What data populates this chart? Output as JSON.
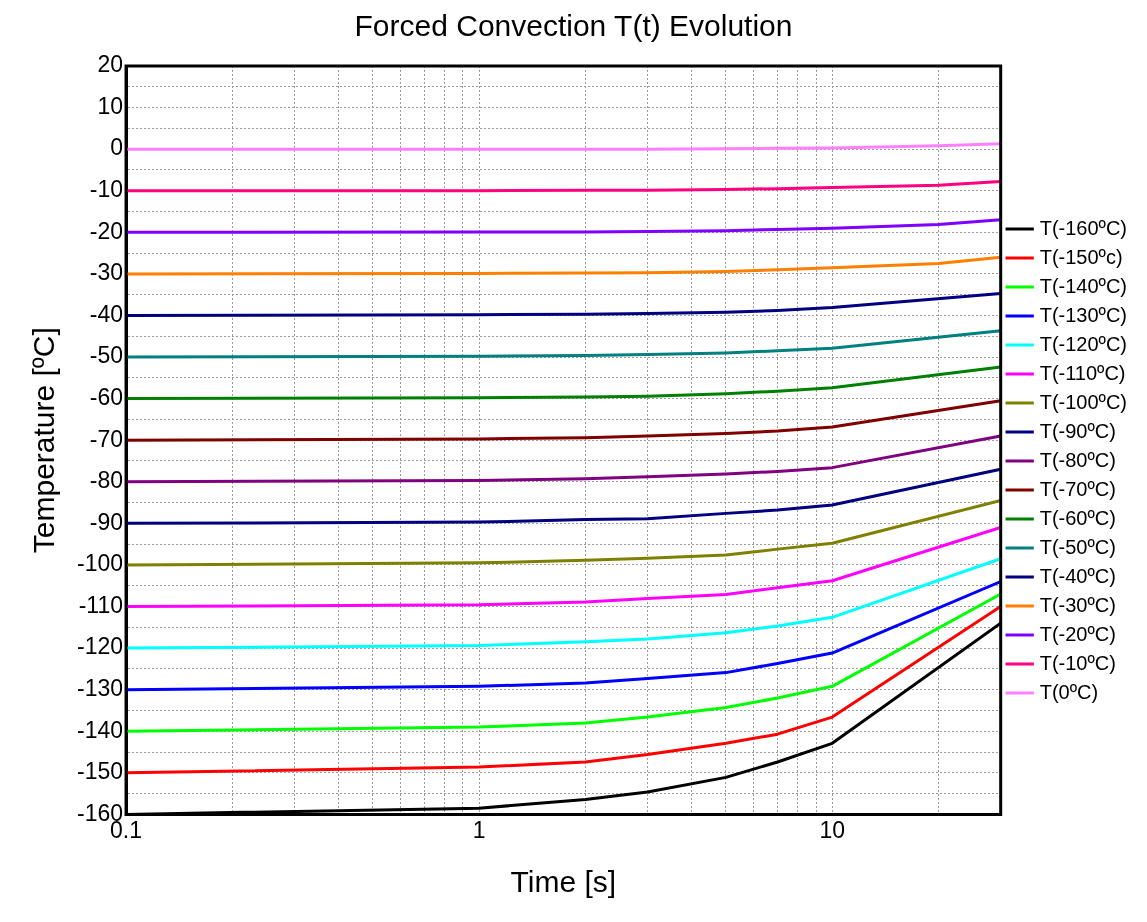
{
  "chart_data": {
    "type": "line",
    "title": "Forced Convection T(t) Evolution",
    "xlabel": "Time [s]",
    "ylabel": "Temperature [ºC]",
    "log": "x",
    "grid": true,
    "legend": "right",
    "line_style": "solid",
    "xlim": [
      0.1,
      30
    ],
    "ylim": [
      -160,
      20
    ],
    "xticks": [
      0.1,
      {
        "value": 0.2,
        "label": null
      },
      {
        "value": 0.3,
        "label": null
      },
      {
        "value": 0.4,
        "label": null
      },
      {
        "value": 0.5,
        "label": null
      },
      {
        "value": 0.6,
        "label": null
      },
      {
        "value": 0.7,
        "label": null
      },
      {
        "value": 0.8,
        "label": null
      },
      {
        "value": 0.9,
        "label": null
      },
      1,
      {
        "value": 2,
        "label": null
      },
      {
        "value": 3,
        "label": null
      },
      {
        "value": 4,
        "label": null
      },
      {
        "value": 5,
        "label": null
      },
      {
        "value": 6,
        "label": null
      },
      {
        "value": 7,
        "label": null
      },
      {
        "value": 8,
        "label": null
      },
      {
        "value": 9,
        "label": null
      },
      10,
      {
        "value": 20,
        "label": null
      }
    ],
    "yticks": [
      -160,
      {
        "value": -155,
        "label": null
      },
      -150,
      {
        "value": -145,
        "label": null
      },
      -140,
      {
        "value": -135,
        "label": null
      },
      -130,
      {
        "value": -125,
        "label": null
      },
      -120,
      {
        "value": -115,
        "label": null
      },
      -110,
      {
        "value": -105,
        "label": null
      },
      -100,
      {
        "value": -95,
        "label": null
      },
      -90,
      {
        "value": -85,
        "label": null
      },
      -80,
      {
        "value": -75,
        "label": null
      },
      -70,
      {
        "value": -65,
        "label": null
      },
      -60,
      {
        "value": -55,
        "label": null
      },
      -50,
      {
        "value": -45,
        "label": null
      },
      -40,
      {
        "value": -35,
        "label": null
      },
      -30,
      {
        "value": -25,
        "label": null
      },
      -20,
      {
        "value": -15,
        "label": null
      },
      -10,
      {
        "value": -5,
        "label": null
      },
      0,
      {
        "value": 5,
        "label": null
      },
      10,
      {
        "value": 15,
        "label": null
      },
      20
    ],
    "x": [
      0.1,
      1,
      2,
      3,
      5,
      7,
      10,
      20,
      30
    ],
    "series": [
      {
        "name": "T(-160ºC)",
        "color": "#000000",
        "values": [
          -160,
          -158.5,
          -156.4,
          -154.6,
          -151.1,
          -147.4,
          -142.9,
          null,
          -114
        ]
      },
      {
        "name": "T(-150ºc)",
        "color": "#ff0000",
        "values": [
          -150,
          -148.6,
          -147.4,
          -145.6,
          -142.9,
          -140.7,
          -136.6,
          null,
          -110
        ]
      },
      {
        "name": "T(-140ºC)",
        "color": "#00ff00",
        "values": [
          -140,
          -139,
          -138,
          -136.6,
          -134.3,
          -132,
          -129.2,
          null,
          -107
        ]
      },
      {
        "name": "T(-130ºC)",
        "color": "#0000ff",
        "values": [
          -130,
          -129.2,
          -128.4,
          -127.3,
          -125.9,
          -123.7,
          -121.2,
          null,
          -104
        ]
      },
      {
        "name": "T(-120ºC)",
        "color": "#00ffff",
        "values": [
          -120,
          -119.4,
          -118.5,
          -117.8,
          -116.3,
          -114.7,
          -112.6,
          null,
          -98.5
        ]
      },
      {
        "name": "T(-110ºC)",
        "color": "#ff00ff",
        "values": [
          -110,
          -109.6,
          -108.9,
          -108.1,
          -107.1,
          -105.5,
          -103.8,
          null,
          -91
        ]
      },
      {
        "name": "T(-100ºC)",
        "color": "#808000",
        "values": [
          -100,
          -99.5,
          -98.9,
          -98.4,
          -97.6,
          -96.2,
          -94.8,
          null,
          -84.5
        ]
      },
      {
        "name": "T(-90ºC)",
        "color": "#000080",
        "values": [
          -90,
          -89.7,
          -89.1,
          -88.9,
          -87.6,
          -86.8,
          -85.6,
          null,
          -77
        ]
      },
      {
        "name": "T(-80ºC)",
        "color": "#800080",
        "values": [
          -80,
          -79.7,
          -79.3,
          -78.8,
          -78.1,
          -77.5,
          -76.6,
          null,
          -69
        ]
      },
      {
        "name": "T(-70ºC)",
        "color": "#800000",
        "values": [
          -70,
          -69.7,
          -69.4,
          -69,
          -68.4,
          -67.8,
          -66.8,
          null,
          -60.5
        ]
      },
      {
        "name": "T(-60ºC)",
        "color": "#008000",
        "values": [
          -60,
          -59.8,
          -59.6,
          -59.4,
          -58.8,
          -58.2,
          -57.4,
          null,
          -52.4
        ]
      },
      {
        "name": "T(-50ºC)",
        "color": "#008080",
        "values": [
          -50,
          -49.8,
          -49.6,
          -49.4,
          -49,
          -48.5,
          -47.9,
          null,
          -43.7
        ]
      },
      {
        "name": "T(-40ºC)",
        "color": "#000080",
        "values": [
          -40,
          -39.8,
          -39.7,
          -39.5,
          -39.2,
          -38.8,
          -38.1,
          null,
          -34.7
        ]
      },
      {
        "name": "T(-30ºC)",
        "color": "#ff8000",
        "values": [
          -30,
          -29.9,
          -29.8,
          -29.7,
          -29.4,
          -29,
          -28.5,
          -27.5,
          -26
        ]
      },
      {
        "name": "T(-20ºC)",
        "color": "#8000ff",
        "values": [
          -20,
          -19.9,
          -19.9,
          -19.8,
          -19.6,
          -19.3,
          -19,
          -18.1,
          -17
        ]
      },
      {
        "name": "T(-10ºC)",
        "color": "#ff0080",
        "values": [
          -10,
          -10,
          -9.9,
          -9.9,
          -9.7,
          -9.5,
          -9.2,
          -8.7,
          -7.8
        ]
      },
      {
        "name": "T(0ºC)",
        "color": "#ff80ff",
        "values": [
          0,
          0,
          0,
          0,
          0.1,
          0.2,
          0.3,
          0.8,
          1.3
        ]
      }
    ]
  }
}
